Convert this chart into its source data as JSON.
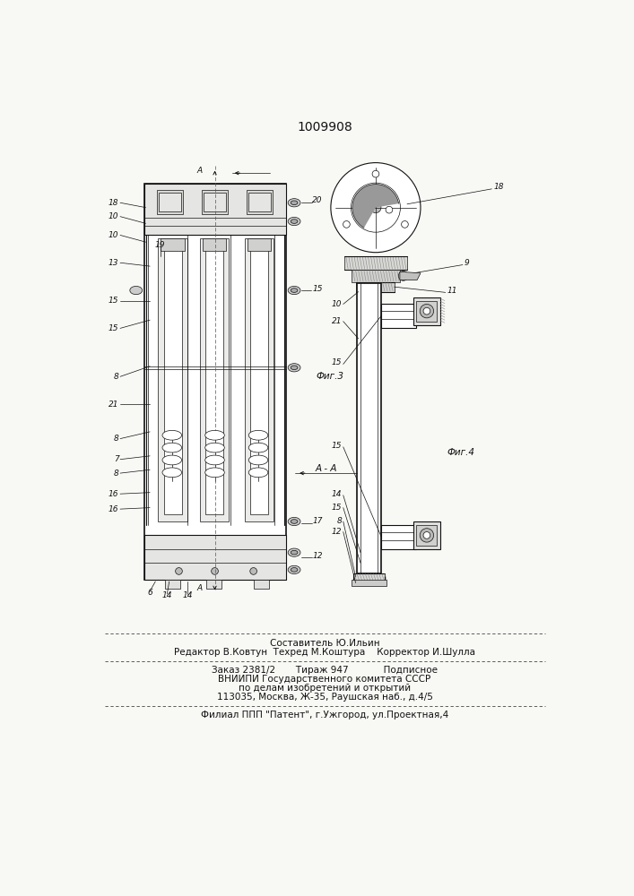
{
  "patent_number": "1009908",
  "bg": "#f8f8f5",
  "lc": "#111111",
  "footer_line1": "Составитель Ю.Ильин",
  "footer_line2": "Редактор В.Ковтун  Техред М.Коштура    Корректор И.Шулла",
  "info1": "Заказ 2381/2       Тираж 947            Подписное",
  "info2": "ВНИИПИ Государственного комитета СССР",
  "info3": "по делам изобретений и открытий",
  "info4": "113035, Москва, Ж-35, Раушская наб., д.4/5",
  "filial": "Филиал ППП \"Патент\", г.Ужгород, ул.Проектная,4"
}
